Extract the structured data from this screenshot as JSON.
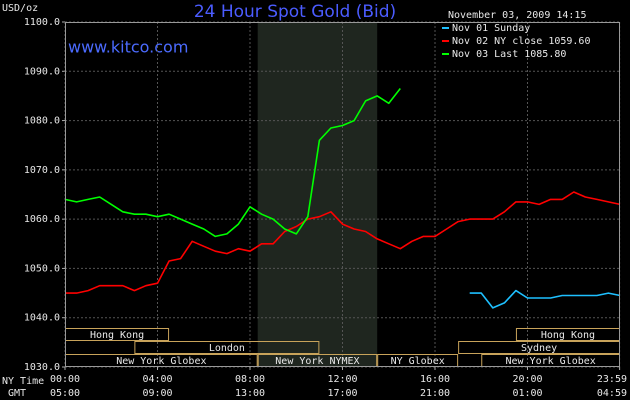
{
  "chart_data": {
    "type": "line",
    "title": "24 Hour Spot Gold (Bid)",
    "site": "www.kitco.com",
    "unit_label": "USD/oz",
    "timestamp": "November 03, 2009 14:15",
    "x_axis_label": "NY Time",
    "x2_axis_label": "GMT",
    "xlim": [
      0,
      24
    ],
    "xticks": [
      {
        "value": 0,
        "label": "00:00"
      },
      {
        "value": 4,
        "label": "04:00"
      },
      {
        "value": 8,
        "label": "08:00"
      },
      {
        "value": 12,
        "label": "12:00"
      },
      {
        "value": 16,
        "label": "16:00"
      },
      {
        "value": 20,
        "label": "20:00"
      },
      {
        "value": 23.983,
        "label": "23:59"
      }
    ],
    "x2ticks": [
      {
        "value": 0,
        "label": "05:00"
      },
      {
        "value": 4,
        "label": "09:00"
      },
      {
        "value": 8,
        "label": "13:00"
      },
      {
        "value": 12,
        "label": "17:00"
      },
      {
        "value": 16,
        "label": "21:00"
      },
      {
        "value": 20,
        "label": "01:00"
      },
      {
        "value": 23.983,
        "label": "04:59"
      }
    ],
    "ylim": [
      1030,
      1100
    ],
    "yticks": [
      {
        "value": 1030,
        "label": "1030.0"
      },
      {
        "value": 1040,
        "label": "1040.0"
      },
      {
        "value": 1050,
        "label": "1050.0"
      },
      {
        "value": 1060,
        "label": "1060.0"
      },
      {
        "value": 1070,
        "label": "1070.0"
      },
      {
        "value": 1080,
        "label": "1080.0"
      },
      {
        "value": 1090,
        "label": "1090.0"
      },
      {
        "value": 1100,
        "label": "1100.0"
      }
    ],
    "grid": true,
    "highlight": {
      "start": 8.333,
      "end": 13.5
    },
    "x": [
      0,
      0.5,
      1,
      1.5,
      2,
      2.5,
      3,
      3.5,
      4,
      4.5,
      5,
      5.5,
      6,
      6.5,
      7,
      7.5,
      8,
      8.5,
      9,
      9.5,
      10,
      10.5,
      11,
      11.5,
      12,
      12.5,
      13,
      13.5,
      14,
      14.5,
      15,
      15.5,
      16,
      16.5,
      17,
      17.5,
      18,
      18.5,
      19,
      19.5,
      20,
      20.5,
      21,
      21.5,
      22,
      22.5,
      23,
      23.5,
      24
    ],
    "series": [
      {
        "name": "Nov 01 Sunday",
        "color": "#1ec0ff",
        "values": [
          null,
          null,
          null,
          null,
          null,
          null,
          null,
          null,
          null,
          null,
          null,
          null,
          null,
          null,
          null,
          null,
          null,
          null,
          null,
          null,
          null,
          null,
          null,
          null,
          null,
          null,
          null,
          null,
          null,
          null,
          null,
          null,
          null,
          null,
          null,
          1045,
          1045,
          1042,
          1043,
          1045.5,
          1044,
          1044,
          1044,
          1044.5,
          1044.5,
          1044.5,
          1044.5,
          1045,
          1044.5
        ]
      },
      {
        "name": "Nov 02 NY close 1059.60",
        "color": "#ff0000",
        "values": [
          1045,
          1045,
          1045.5,
          1046.5,
          1046.5,
          1046.5,
          1045.5,
          1046.5,
          1047,
          1051.5,
          1052,
          1055.5,
          1054.5,
          1053.5,
          1053,
          1054,
          1053.5,
          1055,
          1055,
          1057.5,
          1058.5,
          1060,
          1060.5,
          1061.5,
          1059,
          1058,
          1057.5,
          1056,
          1055,
          1054,
          1055.5,
          1056.5,
          1056.5,
          1058,
          1059.5,
          1060,
          1060,
          1060,
          1061.5,
          1063.5,
          1063.5,
          1063,
          1064,
          1064,
          1065.5,
          1064.5,
          1064,
          1063.5,
          1063
        ]
      },
      {
        "name": "Nov 03 Last 1085.80",
        "color": "#00ff00",
        "values": [
          1064,
          1063.5,
          1064,
          1064.5,
          1063,
          1061.5,
          1061,
          1061,
          1060.5,
          1061,
          1060,
          1059,
          1058,
          1056.5,
          1057,
          1059,
          1062.5,
          1061,
          1060,
          1058,
          1057,
          1060.5,
          1076,
          1078.5,
          1079,
          1080,
          1084,
          1085,
          1083.5,
          1086.5,
          null,
          null,
          null,
          null,
          null,
          null,
          null,
          null,
          null,
          null,
          null,
          null,
          null,
          null,
          null,
          null,
          null,
          null,
          null
        ]
      }
    ],
    "sessions": [
      [
        {
          "label": "Hong Kong",
          "start": 0,
          "end": 4.5
        },
        {
          "label": "Hong Kong",
          "start": 19.5,
          "end": 24
        }
      ],
      [
        {
          "label": "London",
          "start": 3,
          "end": 11
        },
        {
          "label": "Sydney",
          "start": 17,
          "end": 24
        }
      ],
      [
        {
          "label": "New York Globex",
          "start": 0,
          "end": 8.333
        },
        {
          "label": "New York NYMEX",
          "start": 8.333,
          "end": 13.5
        },
        {
          "label": "NY Globex",
          "start": 13.5,
          "end": 17
        },
        {
          "label": "New York Globex",
          "start": 18,
          "end": 24
        }
      ]
    ]
  }
}
